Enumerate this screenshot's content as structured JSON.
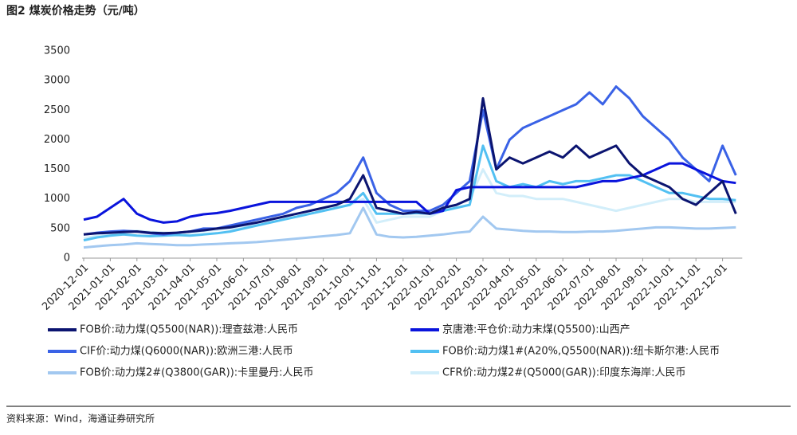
{
  "chart_data": {
    "type": "line",
    "title": "图2  煤炭价格走势（元/吨）",
    "source": "资料来源：Wind，海通证券研究所",
    "categories": [
      "2020-12-01",
      null,
      "2021-01-01",
      null,
      "2021-02-01",
      null,
      "2021-03-01",
      null,
      "2021-04-01",
      null,
      "2021-05-01",
      null,
      "2021-06-01",
      null,
      "2021-07-01",
      null,
      "2021-08-01",
      null,
      "2021-09-01",
      null,
      "2021-10-01",
      null,
      "2021-11-01",
      null,
      "2021-12-01",
      null,
      "2022-01-01",
      null,
      "2022-02-01",
      null,
      "2022-03-01",
      null,
      "2022-04-01",
      null,
      "2022-05-01",
      null,
      "2022-06-01",
      null,
      "2022-07-01",
      null,
      "2022-08-01",
      null,
      "2022-09-01",
      null,
      "2022-10-01",
      null,
      "2022-11-01",
      null,
      "2022-12-01",
      null
    ],
    "ylim": [
      0,
      3500
    ],
    "yticks": [
      0,
      500,
      1000,
      1500,
      2000,
      2500,
      3000,
      3500
    ],
    "grid": false,
    "series": [
      {
        "name": "FOB价:动力煤(Q5500(NAR)):理查兹港:人民币",
        "color": "#0b1470",
        "values": [
          400,
          420,
          430,
          440,
          450,
          430,
          420,
          430,
          450,
          470,
          500,
          520,
          560,
          600,
          650,
          700,
          750,
          800,
          850,
          900,
          1000,
          1400,
          850,
          800,
          750,
          780,
          750,
          850,
          900,
          1000,
          2700,
          1500,
          1700,
          1600,
          1700,
          1800,
          1700,
          1900,
          1700,
          1800,
          1900,
          1600,
          1400,
          1300,
          1200,
          1000,
          900,
          1100,
          1300,
          750
        ]
      },
      {
        "name": "京唐港:平仓价:动力末煤(Q5500):山西产",
        "color": "#0a14dc",
        "values": [
          650,
          700,
          850,
          1000,
          750,
          650,
          600,
          620,
          700,
          740,
          760,
          800,
          850,
          900,
          950,
          950,
          950,
          950,
          950,
          950,
          950,
          950,
          950,
          950,
          950,
          950,
          750,
          800,
          1150,
          1200,
          1200,
          1200,
          1200,
          1200,
          1200,
          1200,
          1200,
          1200,
          1250,
          1300,
          1300,
          1350,
          1400,
          1500,
          1600,
          1600,
          1500,
          1400,
          1300,
          1270
        ]
      },
      {
        "name": "CIF价:动力煤(Q6000(NAR)):欧洲三港:人民币",
        "color": "#3a62e6",
        "values": [
          400,
          430,
          450,
          460,
          450,
          420,
          400,
          430,
          450,
          500,
          500,
          550,
          600,
          650,
          700,
          750,
          850,
          900,
          1000,
          1100,
          1300,
          1700,
          1100,
          900,
          800,
          800,
          800,
          900,
          1100,
          1300,
          2500,
          1500,
          2000,
          2200,
          2300,
          2400,
          2500,
          2600,
          2800,
          2600,
          2900,
          2700,
          2400,
          2200,
          2000,
          1700,
          1500,
          1300,
          1900,
          1400
        ]
      },
      {
        "name": "FOB价:动力煤1#(A20%,Q5500(NAR)):纽卡斯尔港:人民币",
        "color": "#52c0f2",
        "values": [
          300,
          350,
          380,
          400,
          380,
          370,
          380,
          390,
          380,
          400,
          420,
          450,
          500,
          550,
          600,
          650,
          700,
          750,
          800,
          850,
          900,
          1100,
          750,
          750,
          750,
          760,
          750,
          800,
          850,
          900,
          1900,
          1300,
          1200,
          1250,
          1200,
          1300,
          1250,
          1300,
          1300,
          1350,
          1400,
          1400,
          1300,
          1200,
          1100,
          1100,
          1050,
          1000,
          1000,
          980
        ]
      },
      {
        "name": "FOB价:动力煤2#(Q3800(GAR)):卡里曼丹:人民币",
        "color": "#a2c8f0",
        "values": [
          180,
          200,
          220,
          230,
          250,
          240,
          230,
          220,
          220,
          230,
          240,
          250,
          260,
          270,
          290,
          310,
          330,
          350,
          370,
          390,
          420,
          850,
          400,
          360,
          350,
          360,
          380,
          400,
          430,
          450,
          700,
          500,
          480,
          460,
          450,
          450,
          440,
          440,
          450,
          450,
          460,
          480,
          500,
          520,
          520,
          510,
          500,
          500,
          510,
          520
        ]
      },
      {
        "name": "CFR价:动力煤2#(Q5000(GAR)):印度东海岸:人民币",
        "color": "#d2eefa",
        "values": [
          330,
          380,
          420,
          450,
          460,
          440,
          430,
          420,
          430,
          460,
          480,
          500,
          520,
          560,
          600,
          650,
          700,
          750,
          800,
          850,
          900,
          1000,
          600,
          650,
          700,
          700,
          700,
          800,
          900,
          1000,
          1500,
          1100,
          1050,
          1050,
          1000,
          1000,
          1000,
          950,
          900,
          850,
          800,
          850,
          900,
          950,
          1000,
          1000,
          950,
          950,
          950,
          950
        ]
      }
    ]
  }
}
